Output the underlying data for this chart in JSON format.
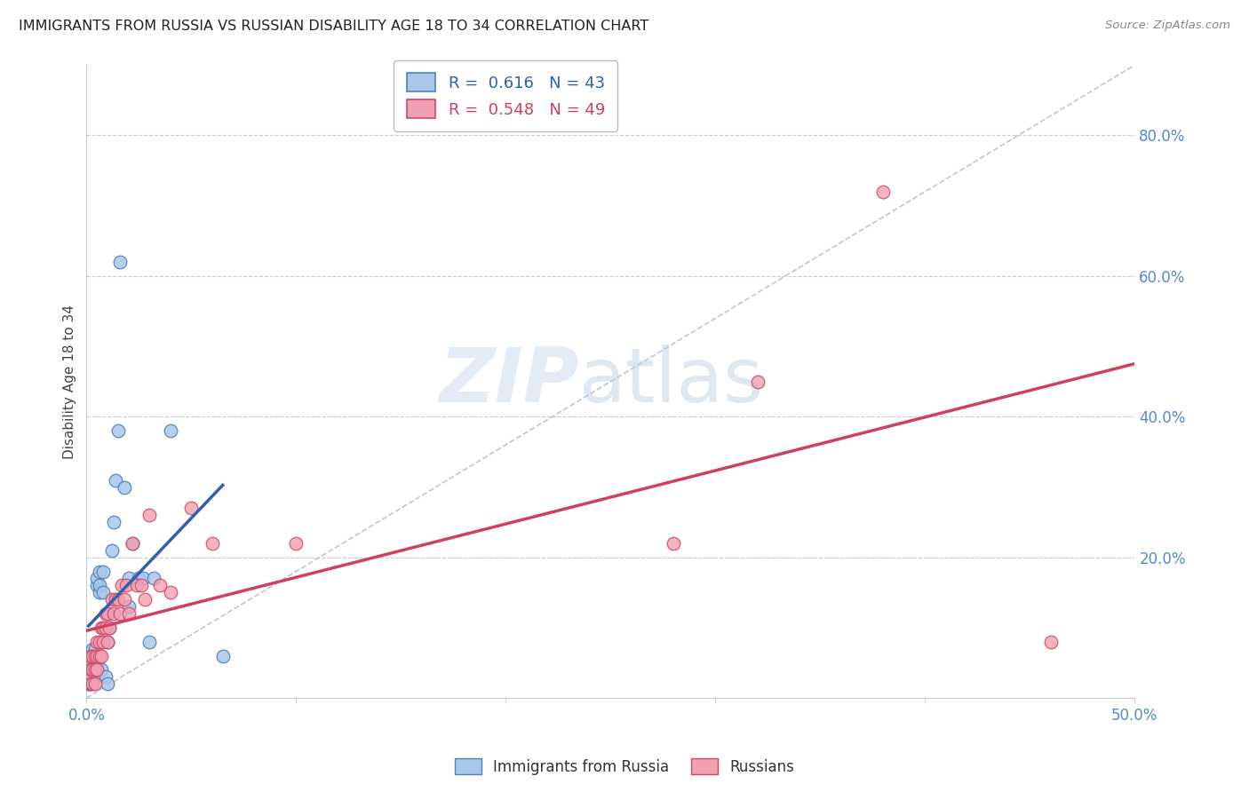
{
  "title": "IMMIGRANTS FROM RUSSIA VS RUSSIAN DISABILITY AGE 18 TO 34 CORRELATION CHART",
  "source": "Source: ZipAtlas.com",
  "ylabel": "Disability Age 18 to 34",
  "legend_label1": "Immigrants from Russia",
  "legend_label2": "Russians",
  "r1": "0.616",
  "n1": "43",
  "r2": "0.548",
  "n2": "49",
  "xlim": [
    0.0,
    0.5
  ],
  "ylim": [
    0.0,
    0.9
  ],
  "color_blue_fill": "#a8c8e8",
  "color_blue_edge": "#5080c0",
  "color_pink_fill": "#f0a0b0",
  "color_pink_edge": "#d04868",
  "color_blue_line": "#3060b0",
  "color_pink_line": "#d04060",
  "color_diag": "#b0b8c8",
  "watermark_zip": "ZIP",
  "watermark_atlas": "atlas",
  "blue_x": [
    0.001,
    0.001,
    0.002,
    0.002,
    0.002,
    0.003,
    0.003,
    0.003,
    0.003,
    0.004,
    0.004,
    0.004,
    0.005,
    0.005,
    0.005,
    0.005,
    0.006,
    0.006,
    0.006,
    0.007,
    0.007,
    0.008,
    0.008,
    0.009,
    0.01,
    0.01,
    0.01,
    0.011,
    0.012,
    0.013,
    0.014,
    0.015,
    0.016,
    0.018,
    0.02,
    0.02,
    0.022,
    0.025,
    0.027,
    0.03,
    0.032,
    0.04,
    0.065
  ],
  "blue_y": [
    0.02,
    0.04,
    0.03,
    0.05,
    0.06,
    0.04,
    0.05,
    0.06,
    0.07,
    0.03,
    0.05,
    0.07,
    0.04,
    0.05,
    0.16,
    0.17,
    0.15,
    0.16,
    0.18,
    0.04,
    0.08,
    0.15,
    0.18,
    0.03,
    0.02,
    0.08,
    0.12,
    0.1,
    0.21,
    0.25,
    0.31,
    0.38,
    0.62,
    0.3,
    0.13,
    0.17,
    0.22,
    0.17,
    0.17,
    0.08,
    0.17,
    0.38,
    0.06
  ],
  "pink_x": [
    0.001,
    0.001,
    0.001,
    0.002,
    0.002,
    0.002,
    0.003,
    0.003,
    0.003,
    0.004,
    0.004,
    0.004,
    0.005,
    0.005,
    0.005,
    0.006,
    0.006,
    0.007,
    0.007,
    0.008,
    0.008,
    0.009,
    0.009,
    0.01,
    0.01,
    0.011,
    0.012,
    0.013,
    0.014,
    0.015,
    0.016,
    0.017,
    0.018,
    0.019,
    0.02,
    0.022,
    0.024,
    0.026,
    0.028,
    0.03,
    0.035,
    0.04,
    0.05,
    0.06,
    0.1,
    0.28,
    0.32,
    0.38,
    0.46
  ],
  "pink_y": [
    0.02,
    0.03,
    0.05,
    0.02,
    0.04,
    0.06,
    0.02,
    0.04,
    0.06,
    0.02,
    0.04,
    0.06,
    0.04,
    0.06,
    0.08,
    0.06,
    0.08,
    0.06,
    0.1,
    0.08,
    0.1,
    0.1,
    0.12,
    0.08,
    0.12,
    0.1,
    0.14,
    0.12,
    0.14,
    0.14,
    0.12,
    0.16,
    0.14,
    0.16,
    0.12,
    0.22,
    0.16,
    0.16,
    0.14,
    0.26,
    0.16,
    0.15,
    0.27,
    0.22,
    0.22,
    0.22,
    0.45,
    0.72,
    0.08
  ]
}
